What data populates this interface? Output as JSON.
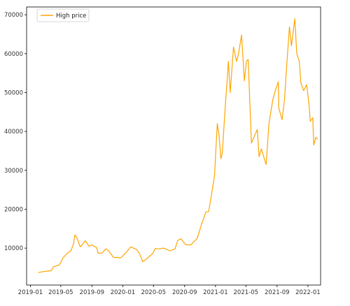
{
  "chart_data": {
    "type": "line",
    "title": "",
    "xlabel": "",
    "ylabel": "",
    "legend": {
      "placement": "top-left",
      "entries": [
        "High price"
      ]
    },
    "grid": false,
    "x_tick_labels": [
      "2019-01",
      "2019-05",
      "2019-09",
      "2020-01",
      "2020-05",
      "2020-09",
      "2021-01",
      "2021-05",
      "2021-09",
      "2022-01"
    ],
    "y_tick_labels": [
      "10000",
      "20000",
      "30000",
      "40000",
      "50000",
      "60000",
      "70000"
    ],
    "xlim": [
      "2018-12-17",
      "2022-02-20"
    ],
    "ylim": [
      500,
      72000
    ],
    "colors": {
      "series": "#ffa500",
      "axis": "#000000"
    },
    "series": [
      {
        "name": "High price",
        "x": [
          "2019-02-01",
          "2019-02-20",
          "2019-03-10",
          "2019-03-25",
          "2019-04-02",
          "2019-04-25",
          "2019-05-10",
          "2019-05-20",
          "2019-05-31",
          "2019-06-10",
          "2019-06-20",
          "2019-06-26",
          "2019-07-05",
          "2019-07-10",
          "2019-07-17",
          "2019-07-25",
          "2019-08-06",
          "2019-08-20",
          "2019-09-01",
          "2019-09-20",
          "2019-09-25",
          "2019-10-10",
          "2019-10-26",
          "2019-11-05",
          "2019-11-25",
          "2019-12-10",
          "2019-12-25",
          "2020-01-14",
          "2020-02-01",
          "2020-02-12",
          "2020-02-25",
          "2020-03-05",
          "2020-03-12",
          "2020-03-20",
          "2020-04-05",
          "2020-04-29",
          "2020-05-08",
          "2020-05-25",
          "2020-06-10",
          "2020-07-05",
          "2020-07-25",
          "2020-08-05",
          "2020-08-17",
          "2020-09-05",
          "2020-09-25",
          "2020-10-21",
          "2020-11-05",
          "2020-11-24",
          "2020-12-05",
          "2020-12-17",
          "2020-12-28",
          "2021-01-08",
          "2021-01-15",
          "2021-01-22",
          "2021-01-28",
          "2021-02-09",
          "2021-02-15",
          "2021-02-21",
          "2021-02-28",
          "2021-03-13",
          "2021-03-25",
          "2021-04-02",
          "2021-04-14",
          "2021-04-25",
          "2021-05-03",
          "2021-05-10",
          "2021-05-19",
          "2021-05-23",
          "2021-06-05",
          "2021-06-15",
          "2021-06-22",
          "2021-07-01",
          "2021-07-20",
          "2021-07-31",
          "2021-08-15",
          "2021-08-23",
          "2021-09-06",
          "2021-09-08",
          "2021-09-21",
          "2021-10-01",
          "2021-10-08",
          "2021-10-20",
          "2021-10-28",
          "2021-11-10",
          "2021-11-18",
          "2021-11-28",
          "2021-12-04",
          "2021-12-15",
          "2021-12-27",
          "2022-01-05",
          "2022-01-10",
          "2022-01-20",
          "2022-01-24",
          "2022-02-01",
          "2022-02-08"
        ],
        "values": [
          3700,
          3950,
          4100,
          4200,
          5200,
          5650,
          7500,
          8200,
          8900,
          9300,
          11000,
          13400,
          12500,
          11500,
          10300,
          10900,
          11900,
          10500,
          10800,
          10100,
          8700,
          8700,
          9800,
          9400,
          7600,
          7600,
          7500,
          8900,
          10300,
          10000,
          9600,
          8800,
          7800,
          6500,
          7300,
          8700,
          9900,
          9800,
          10000,
          9300,
          9800,
          12000,
          12400,
          10900,
          10800,
          12500,
          15800,
          19300,
          19400,
          24000,
          28500,
          42000,
          39000,
          33000,
          34500,
          47000,
          52000,
          58000,
          50000,
          61700,
          58000,
          60000,
          64800,
          53000,
          58000,
          58500,
          43500,
          37000,
          39000,
          40500,
          33500,
          35500,
          31500,
          42000,
          48000,
          50000,
          52800,
          46000,
          43000,
          48500,
          56000,
          66900,
          62000,
          69000,
          60000,
          58000,
          52500,
          50500,
          52000,
          47000,
          42600,
          43500,
          36500,
          38500,
          38000
        ]
      }
    ]
  }
}
